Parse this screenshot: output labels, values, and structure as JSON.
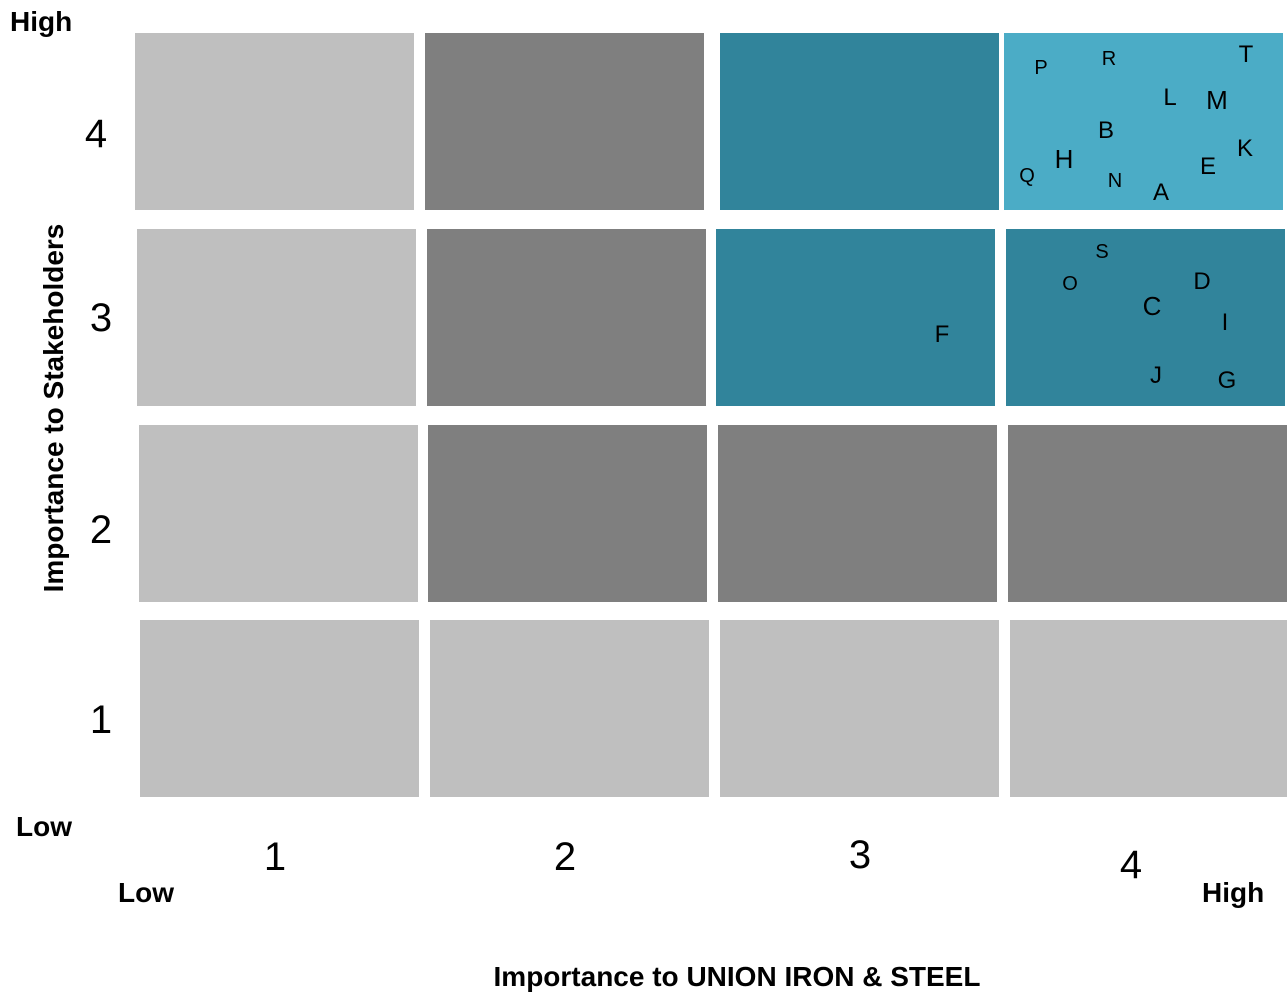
{
  "axes": {
    "y_title": "Importance to Stakeholders",
    "x_title": "Importance to UNION IRON & STEEL",
    "y_high": "High",
    "y_low": "Low",
    "x_low": "Low",
    "x_high": "High",
    "y_ticks": [
      "4",
      "3",
      "2",
      "1"
    ],
    "x_ticks": [
      "1",
      "2",
      "3",
      "4"
    ]
  },
  "colors": {
    "low": "#bfbfbf",
    "mid": "#7f7f7f",
    "teal": "#31849b",
    "high": "#4bacc6"
  },
  "matrix": [
    {
      "row": 4,
      "cells": [
        "low",
        "mid",
        "teal",
        "high"
      ]
    },
    {
      "row": 3,
      "cells": [
        "low",
        "mid",
        "teal",
        "teal"
      ]
    },
    {
      "row": 2,
      "cells": [
        "low",
        "mid",
        "mid",
        "mid"
      ]
    },
    {
      "row": 1,
      "cells": [
        "low",
        "low",
        "low",
        "low"
      ]
    }
  ],
  "items": [
    {
      "label": "P",
      "x": 4,
      "y": 4
    },
    {
      "label": "R",
      "x": 4,
      "y": 4
    },
    {
      "label": "T",
      "x": 4,
      "y": 4
    },
    {
      "label": "L",
      "x": 4,
      "y": 4
    },
    {
      "label": "M",
      "x": 4,
      "y": 4
    },
    {
      "label": "B",
      "x": 4,
      "y": 4
    },
    {
      "label": "K",
      "x": 4,
      "y": 4
    },
    {
      "label": "H",
      "x": 4,
      "y": 4
    },
    {
      "label": "Q",
      "x": 4,
      "y": 4
    },
    {
      "label": "E",
      "x": 4,
      "y": 4
    },
    {
      "label": "N",
      "x": 4,
      "y": 4
    },
    {
      "label": "A",
      "x": 4,
      "y": 4
    },
    {
      "label": "S",
      "x": 4,
      "y": 3
    },
    {
      "label": "O",
      "x": 4,
      "y": 3
    },
    {
      "label": "D",
      "x": 4,
      "y": 3
    },
    {
      "label": "C",
      "x": 4,
      "y": 3
    },
    {
      "label": "I",
      "x": 4,
      "y": 3
    },
    {
      "label": "J",
      "x": 4,
      "y": 3
    },
    {
      "label": "G",
      "x": 4,
      "y": 3
    },
    {
      "label": "F",
      "x": 3,
      "y": 3
    }
  ]
}
